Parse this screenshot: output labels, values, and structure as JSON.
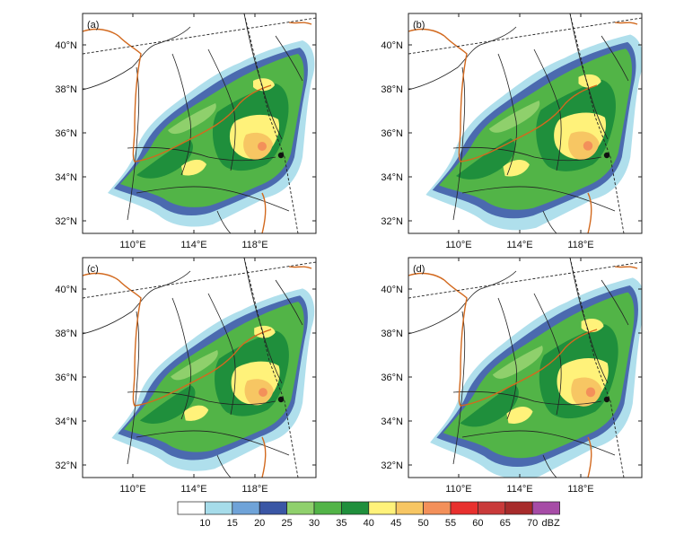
{
  "panels": [
    {
      "label": "(a)",
      "show_lat": true,
      "show_lon": true
    },
    {
      "label": "(b)",
      "show_lat": true,
      "show_lon": true
    },
    {
      "label": "(c)",
      "show_lat": true,
      "show_lon": true
    },
    {
      "label": "(d)",
      "show_lat": true,
      "show_lon": true
    }
  ],
  "lat_labels": [
    "40°N",
    "38°N",
    "36°N",
    "34°N",
    "32°N"
  ],
  "lon_labels": [
    "110°E",
    "114°E",
    "118°E"
  ],
  "colorbar": {
    "unit": "dBZ",
    "ticks": [
      "10",
      "15",
      "20",
      "25",
      "30",
      "35",
      "40",
      "45",
      "50",
      "55",
      "60",
      "65",
      "70"
    ],
    "colors": [
      "#ffffff",
      "#a6dcea",
      "#6fa3d8",
      "#3a56a5",
      "#8fd06c",
      "#52b447",
      "#1f8f3c",
      "#fff27a",
      "#f7c663",
      "#f3905a",
      "#e8302e",
      "#c93a3a",
      "#a72b2b",
      "#a64ca6"
    ]
  },
  "colors": {
    "border": "#222222",
    "river": "#d2691e",
    "echo_weak": "#a6dcea",
    "echo_mid": "#6fa3d8",
    "echo_low": "#3a56a5",
    "echo_green1": "#8fd06c",
    "echo_green2": "#52b447",
    "echo_green3": "#1f8f3c",
    "echo_yellow": "#fff27a",
    "echo_orange": "#f7c663",
    "echo_red": "#e8302e"
  }
}
